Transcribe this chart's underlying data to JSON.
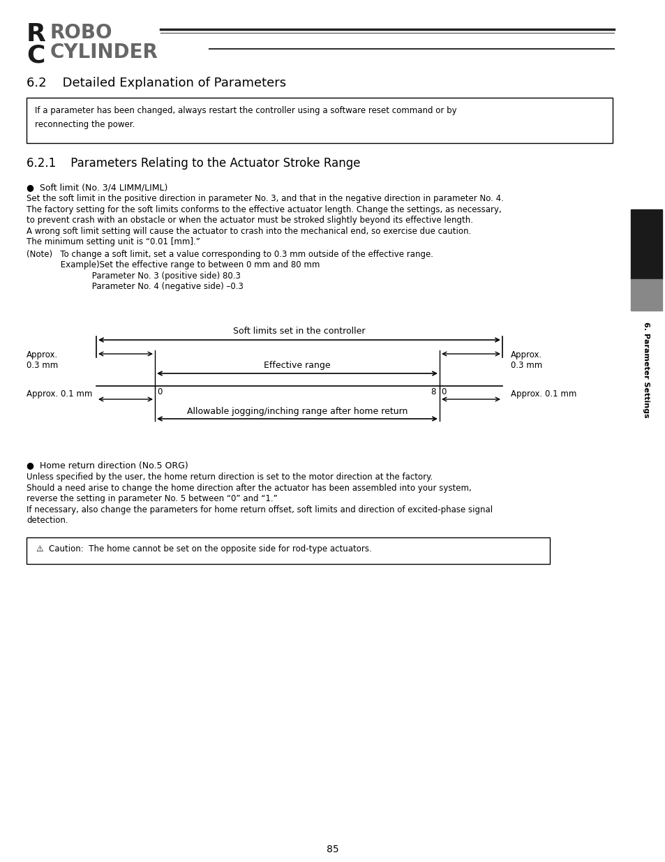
{
  "title_section": "6.2    Detailed Explanation of Parameters",
  "info_box_text": "If a parameter has been changed, always restart the controller using a software reset command or by\nreconnecting the power.",
  "subsection_title": "6.2.1    Parameters Relating to the Actuator Stroke Range",
  "bullet1_title": "●  Soft limit (No. 3/4 LIMM/LIML)",
  "body_text1": [
    "Set the soft limit in the positive direction in parameter No. 3, and that in the negative direction in parameter No. 4.",
    "The factory setting for the soft limits conforms to the effective actuator length. Change the settings, as necessary,",
    "to prevent crash with an obstacle or when the actuator must be stroked slightly beyond its effective length.",
    "A wrong soft limit setting will cause the actuator to crash into the mechanical end, so exercise due caution.",
    "The minimum setting unit is “0.01 [mm].”"
  ],
  "note_text": [
    "(Note)   To change a soft limit, set a value corresponding to 0.3 mm outside of the effective range.",
    "             Example)Set the effective range to between 0 mm and 80 mm",
    "                         Parameter No. 3 (positive side) 80.3",
    "                         Parameter No. 4 (negative side) –0.3"
  ],
  "diagram_label_top": "Soft limits set in the controller",
  "diagram_label_mid": "Effective range",
  "diagram_label_bot": "Allowable jogging/inching range after home return",
  "approx_left_top": "Approx.\n0.3 mm",
  "approx_right_top": "Approx.\n0.3 mm",
  "approx_left_bot": "Approx. 0.1 mm",
  "approx_right_bot": "Approx. 0.1 mm",
  "zero_left": "0",
  "eight_zero": "8|0",
  "bullet2_title": "●  Home return direction (No.5 ORG)",
  "body_text2": [
    "Unless specified by the user, the home return direction is set to the motor direction at the factory.",
    "Should a need arise to change the home direction after the actuator has been assembled into your system,",
    "reverse the setting in parameter No. 5 between “0” and “1.”",
    "If necessary, also change the parameters for home return offset, soft limits and direction of excited-phase signal",
    "detection."
  ],
  "caution_box_text": "⚠  Caution:  The home cannot be set on the opposite side for rod-type actuators.",
  "page_number": "85",
  "sidebar_text": "6. Parameter Settings",
  "bg_color": "#ffffff",
  "text_color": "#000000"
}
